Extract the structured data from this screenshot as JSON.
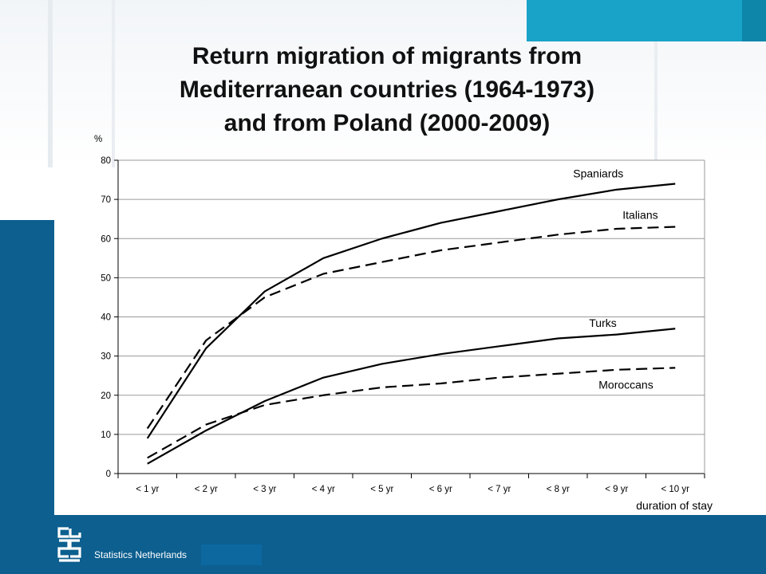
{
  "slide": {
    "title_lines": [
      "Return migration of migrants from",
      "Mediterranean countries (1964-1973)",
      "and from Poland (2000-2009)"
    ],
    "footer": "Statistics Netherlands",
    "colors": {
      "footer_bar": "#0c5f8f",
      "corner_accent": "#1aa3c9"
    },
    "logo_icon": "cbs-logo-icon"
  },
  "chart_data": {
    "type": "line",
    "title": "",
    "ylabel": "%",
    "xlabel": "duration of stay",
    "categories": [
      "< 1 yr",
      "< 2 yr",
      "< 3 yr",
      "< 4 yr",
      "< 5 yr",
      "< 6 yr",
      "< 7 yr",
      "< 8 yr",
      "< 9 yr",
      "< 10 yr"
    ],
    "ylim": [
      0,
      80
    ],
    "yticks": [
      0,
      10,
      20,
      30,
      40,
      50,
      60,
      70,
      80
    ],
    "grid": true,
    "series": [
      {
        "name": "Spaniards",
        "style": "solid",
        "values": [
          9,
          32,
          46.5,
          55,
          60,
          64,
          67,
          70,
          72.5,
          74
        ]
      },
      {
        "name": "Italians",
        "style": "dashed",
        "values": [
          11.5,
          34,
          45,
          51,
          54,
          57,
          59,
          61,
          62.5,
          63
        ]
      },
      {
        "name": "Turks",
        "style": "solid",
        "values": [
          2.5,
          11,
          18.5,
          24.5,
          28,
          30.5,
          32.5,
          34.5,
          35.5,
          37
        ]
      },
      {
        "name": "Moroccans",
        "style": "dashed",
        "values": [
          4,
          12.5,
          17.5,
          20,
          22,
          23,
          24.5,
          25.5,
          26.5,
          27
        ]
      }
    ]
  }
}
